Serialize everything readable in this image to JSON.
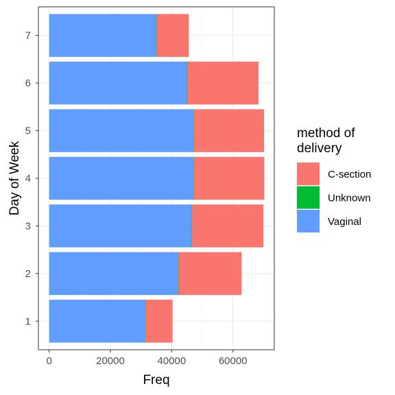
{
  "chart_data": {
    "type": "bar",
    "orientation": "horizontal",
    "stacked": true,
    "categories": [
      "1",
      "2",
      "3",
      "4",
      "5",
      "6",
      "7"
    ],
    "series": [
      {
        "name": "Vaginal",
        "color": "#619CFF",
        "values": [
          31400,
          42100,
          46500,
          47100,
          47100,
          45000,
          35000
        ]
      },
      {
        "name": "Unknown",
        "color": "#00BA38",
        "values": [
          100,
          150,
          150,
          150,
          150,
          150,
          100
        ]
      },
      {
        "name": "C-section",
        "color": "#F8766D",
        "values": [
          8800,
          20600,
          23300,
          23000,
          22900,
          23200,
          10500
        ]
      }
    ],
    "stack_order": [
      "Vaginal",
      "Unknown",
      "C-section"
    ],
    "legend_order": [
      "C-section",
      "Unknown",
      "Vaginal"
    ],
    "xlabel": "Freq",
    "ylabel": "Day of Week",
    "x_ticks": [
      0,
      20000,
      40000,
      60000
    ],
    "xlim": [
      -3500,
      73500
    ],
    "legend": {
      "title_lines": [
        "method of",
        "delivery"
      ],
      "position": "right"
    },
    "grid": true,
    "theme": "bw"
  }
}
